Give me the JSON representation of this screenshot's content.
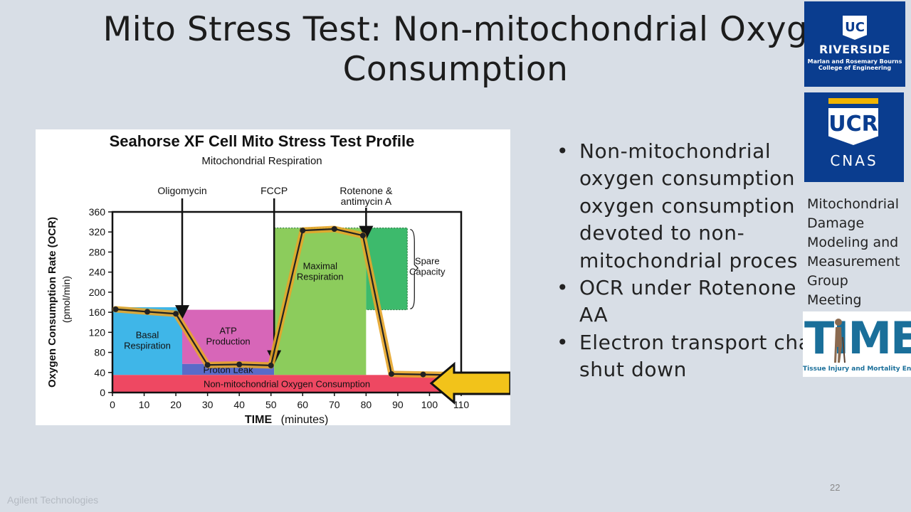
{
  "slide": {
    "title_line1": "Mito Stress Test: Non-mitochondrial Oxyg",
    "title_line2": "Consumption",
    "bullets": [
      {
        "lines": [
          "Non-mitochondrial",
          "oxygen consumption",
          "oxygen consumption",
          "devoted to non-",
          "mitochondrial proces"
        ]
      },
      {
        "lines": [
          "OCR under Rotenone",
          "AA"
        ]
      },
      {
        "lines": [
          "Electron transport cha",
          "shut down"
        ]
      }
    ],
    "bullet_glyph": "•",
    "page_number": "22",
    "credit": "Agilent Technologies"
  },
  "right_rail": {
    "ucr_logo": {
      "badge": "UC",
      "name": "RIVERSIDE",
      "college_line1": "Marlan and Rosemary Bourns",
      "college_line2": "College of Engineering"
    },
    "cnas_logo": {
      "badge": "UCR",
      "name": "CNAS"
    },
    "group_lines": [
      "Mitochondrial",
      "Damage",
      "Modeling and",
      "Measurement",
      "Group",
      "Meeting"
    ],
    "time_logo": {
      "word": "TIME",
      "tagline": "Tissue Injury and Mortality Engineering"
    }
  },
  "colors": {
    "basal": "#3fb6e8",
    "atp": "#d766b8",
    "proton_leak": "#5a6bc8",
    "non_mito": "#ee4862",
    "maximal": "#8ccc5c",
    "spare": "#3dba6c",
    "trace": "#e6a52a",
    "arrow": "#f2c31a"
  },
  "chart_data": {
    "type": "line",
    "title": "Seahorse XF Cell Mito Stress Test Profile",
    "subtitle": "Mitochondrial Respiration",
    "xlabel": "TIME",
    "xlabel_unit": "(minutes)",
    "ylabel": "Oxygen Consumption Rate (OCR)",
    "ylabel_unit": "(pmol/min)",
    "xlim": [
      0,
      110
    ],
    "ylim": [
      0,
      360
    ],
    "x_ticks": [
      0,
      10,
      20,
      30,
      40,
      50,
      60,
      70,
      80,
      90,
      100,
      110
    ],
    "y_ticks": [
      0,
      40,
      80,
      120,
      160,
      200,
      240,
      280,
      320,
      360
    ],
    "series": [
      {
        "x": [
          1,
          11,
          20,
          30,
          40,
          50,
          60,
          70,
          79,
          88,
          98,
          106
        ],
        "y": [
          166,
          161,
          157,
          55,
          56,
          54,
          323,
          326,
          313,
          37,
          36,
          35
        ]
      }
    ],
    "injections": [
      {
        "label": "Oligomycin",
        "x": 22
      },
      {
        "label": "FCCP",
        "x": 51
      },
      {
        "label": "Rotenone &",
        "label2": "antimycin A",
        "x": 80
      }
    ],
    "regions": [
      {
        "label": "Basal",
        "label2": "Respiration",
        "x0": 0,
        "x1": 22,
        "y0": 35,
        "y1": 170,
        "color_key": "basal"
      },
      {
        "label": "ATP",
        "label2": "Production",
        "x0": 22,
        "x1": 51,
        "y0": 57,
        "y1": 165,
        "color_key": "atp"
      },
      {
        "label": "Proton Leak",
        "x0": 22,
        "x1": 51,
        "y0": 35,
        "y1": 57,
        "color_key": "proton_leak"
      },
      {
        "label": "Maximal",
        "label2": "Respiration",
        "x0": 51,
        "x1": 80,
        "y0": 35,
        "y1": 328,
        "color_key": "maximal"
      },
      {
        "label": "Spare",
        "label2": "Capacity",
        "x0": 80,
        "x1": 93,
        "y0": 165,
        "y1": 328,
        "color_key": "spare"
      },
      {
        "label": "Non-mitochondrial Oxygen Consumption",
        "x0": 0,
        "x1": 110,
        "y0": 0,
        "y1": 35,
        "color_key": "non_mito"
      }
    ],
    "legend": "none",
    "grid": false
  }
}
